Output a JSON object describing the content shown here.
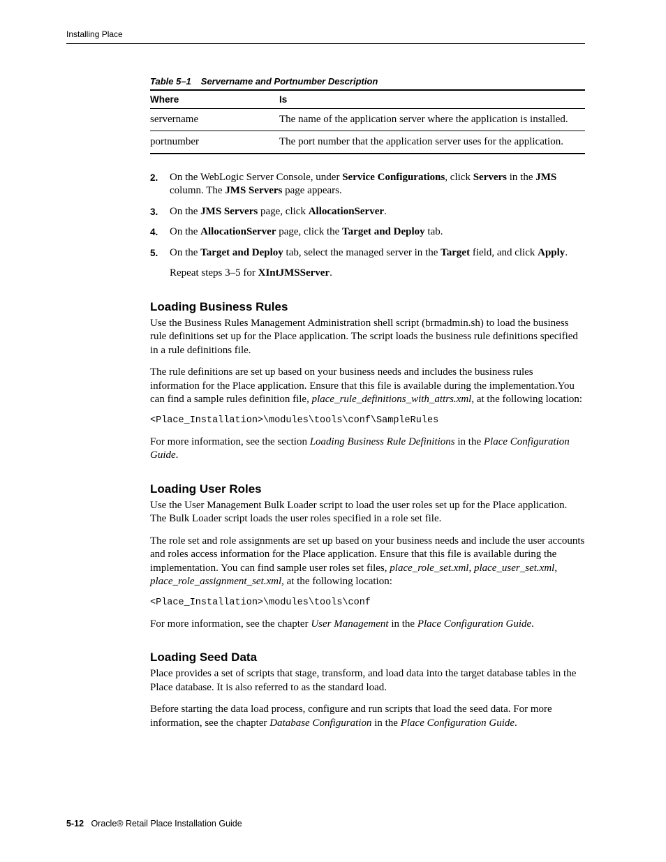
{
  "header": {
    "running_head": "Installing Place"
  },
  "table": {
    "caption_num": "Table 5–1",
    "caption_text": "Servername and Portnumber Description",
    "col1": "Where",
    "col2": "Is",
    "rows": [
      {
        "where": "servername",
        "is": "The name of the application server where the application is installed."
      },
      {
        "where": "portnumber",
        "is": "The port number that the application server uses for the application."
      }
    ]
  },
  "steps": {
    "s2_num": "2.",
    "s2_a": "On the WebLogic Server Console, under ",
    "s2_b": "Service Configurations",
    "s2_c": ", click ",
    "s2_d": "Servers",
    "s2_e": " in the ",
    "s2_f": "JMS",
    "s2_g": " column. The ",
    "s2_h": "JMS Servers",
    "s2_i": " page appears.",
    "s3_num": "3.",
    "s3_a": "On the ",
    "s3_b": "JMS Servers",
    "s3_c": " page, click ",
    "s3_d": "AllocationServer",
    "s3_e": ".",
    "s4_num": "4.",
    "s4_a": "On the ",
    "s4_b": "AllocationServer",
    "s4_c": " page, click the ",
    "s4_d": "Target and Deploy",
    "s4_e": " tab.",
    "s5_num": "5.",
    "s5_a": "On the ",
    "s5_b": "Target and Deploy",
    "s5_c": " tab, select the managed server in the ",
    "s5_d": "Target",
    "s5_e": " field, and click ",
    "s5_f": "Apply",
    "s5_g": ".",
    "s5_sub_a": "Repeat steps 3–5 for ",
    "s5_sub_b": "XIntJMSServer",
    "s5_sub_c": "."
  },
  "sec1": {
    "head": "Loading Business Rules",
    "p1": "Use the Business Rules Management Administration shell script (brmadmin.sh) to load the business rule definitions set up for the Place application. The script loads the business rule definitions specified in a rule definitions file.",
    "p2_a": "The rule definitions are set up based on your business needs and includes the business rules information for the Place application. Ensure that this file is available during the implementation.You can find a sample rules definition file, ",
    "p2_b": "place_rule_definitions_with_attrs.xml",
    "p2_c": ", at the following location:",
    "code": "<Place_Installation>\\modules\\tools\\conf\\SampleRules",
    "p3_a": "For more information, see the section ",
    "p3_b": "Loading Business Rule Definitions",
    "p3_c": " in the ",
    "p3_d": "Place Configuration Guide",
    "p3_e": "."
  },
  "sec2": {
    "head": "Loading User Roles",
    "p1": "Use the User Management Bulk Loader script to load the user roles set up for the Place application. The Bulk Loader script loads the user roles specified in a role set file.",
    "p2_a": "The role set and role assignments are set up based on your business needs and include the user accounts and roles access information for the Place application. Ensure that this file is available during the implementation. You can find sample user roles set files, ",
    "p2_b": "place_role_set.xml",
    "p2_c": ", ",
    "p2_d": "place_user_set.xml",
    "p2_e": ", ",
    "p2_f": "place_role_assignment_set.xml",
    "p2_g": ", at the following location:",
    "code": "<Place_Installation>\\modules\\tools\\conf",
    "p3_a": "For more information, see the chapter ",
    "p3_b": "User Management",
    "p3_c": " in the ",
    "p3_d": "Place Configuration Guide",
    "p3_e": "."
  },
  "sec3": {
    "head": "Loading Seed Data",
    "p1": "Place provides a set of scripts that stage, transform, and load data into the target database tables in the Place database. It is also referred to as the standard load.",
    "p2_a": "Before starting the data load process, configure and run scripts that load the seed data. For more information, see the chapter ",
    "p2_b": "Database Configuration",
    "p2_c": " in the ",
    "p2_d": "Place Configuration Guide",
    "p2_e": "."
  },
  "footer": {
    "page": "5-12",
    "title": "Oracle® Retail Place Installation Guide"
  }
}
